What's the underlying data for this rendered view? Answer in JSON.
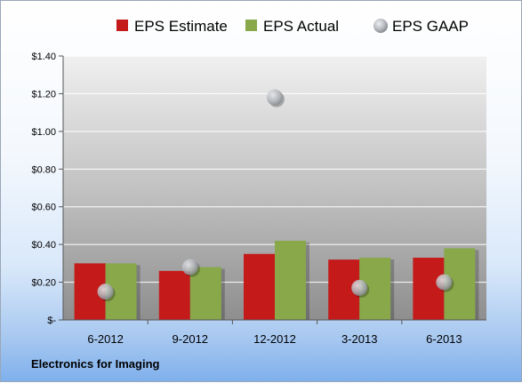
{
  "chart_data": {
    "type": "bar",
    "categories": [
      "6-2012",
      "9-2012",
      "12-2012",
      "3-2013",
      "6-2013"
    ],
    "series": [
      {
        "name": "EPS Estimate",
        "kind": "bar",
        "color": "#c41a1a",
        "values": [
          0.3,
          0.26,
          0.35,
          0.32,
          0.33
        ]
      },
      {
        "name": "EPS Actual",
        "kind": "bar",
        "color": "#88a84a",
        "values": [
          0.3,
          0.28,
          0.42,
          0.33,
          0.38
        ]
      },
      {
        "name": "EPS GAAP",
        "kind": "scatter",
        "color": "#a9abb0",
        "values": [
          0.15,
          0.28,
          1.18,
          0.17,
          0.2
        ]
      }
    ],
    "yticks": [
      {
        "value": 0,
        "label": "$-"
      },
      {
        "value": 0.2,
        "label": "$0.20"
      },
      {
        "value": 0.4,
        "label": "$0.40"
      },
      {
        "value": 0.6,
        "label": "$0.60"
      },
      {
        "value": 0.8,
        "label": "$0.80"
      },
      {
        "value": 1.0,
        "label": "$1.00"
      },
      {
        "value": 1.2,
        "label": "$1.20"
      },
      {
        "value": 1.4,
        "label": "$1.40"
      }
    ],
    "ylim": [
      0,
      1.4
    ],
    "grid": true,
    "legend_position": "top",
    "footer": "Electronics for Imaging"
  }
}
